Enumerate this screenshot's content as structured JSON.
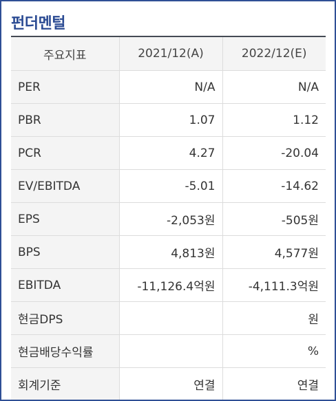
{
  "panel": {
    "title": "펀더멘털"
  },
  "table": {
    "headers": [
      "주요지표",
      "2021/12(A)",
      "2022/12(E)"
    ],
    "rows": [
      {
        "label": "PER",
        "values": [
          "N/A",
          "N/A"
        ]
      },
      {
        "label": "PBR",
        "values": [
          "1.07",
          "1.12"
        ]
      },
      {
        "label": "PCR",
        "values": [
          "4.27",
          "-20.04"
        ]
      },
      {
        "label": "EV/EBITDA",
        "values": [
          "-5.01",
          "-14.62"
        ]
      },
      {
        "label": "EPS",
        "values": [
          "-2,053원",
          "-505원"
        ]
      },
      {
        "label": "BPS",
        "values": [
          "4,813원",
          "4,577원"
        ]
      },
      {
        "label": "EBITDA",
        "values": [
          "-11,126.4억원",
          "-4,111.3억원"
        ]
      },
      {
        "label": "현금DPS",
        "values": [
          "",
          "원"
        ]
      },
      {
        "label": "현금배당수익률",
        "values": [
          "",
          "%"
        ]
      },
      {
        "label": "회계기준",
        "values": [
          "연결",
          "연결"
        ]
      }
    ]
  }
}
